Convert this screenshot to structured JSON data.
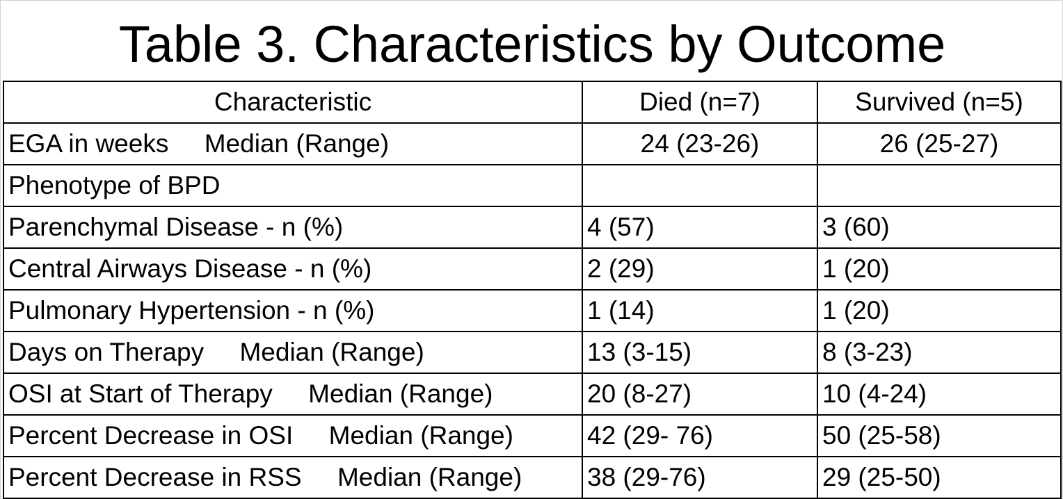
{
  "title": "Table 3. Characteristics by Outcome",
  "table": {
    "headers": [
      "Characteristic",
      "Died (n=7)",
      "Survived (n=5)"
    ],
    "rows": [
      {
        "characteristic": "EGA in weeks     Median (Range)",
        "died": "24 (23-26)",
        "survived": "26 (25-27)"
      },
      {
        "characteristic": "Phenotype of BPD",
        "died": "",
        "survived": ""
      },
      {
        "characteristic": "Parenchymal Disease - n (%)",
        "died": "4 (57)",
        "survived": "3 (60)"
      },
      {
        "characteristic": "Central Airways Disease - n (%)",
        "died": "2 (29)",
        "survived": "1 (20)"
      },
      {
        "characteristic": "Pulmonary Hypertension - n (%)",
        "died": "1 (14)",
        "survived": "1 (20)"
      },
      {
        "characteristic": "Days on Therapy     Median (Range)",
        "died": "13 (3-15)",
        "survived": "8 (3-23)"
      },
      {
        "characteristic": "OSI at Start of Therapy     Median (Range)",
        "died": "20 (8-27)",
        "survived": "10 (4-24)"
      },
      {
        "characteristic": "Percent Decrease in OSI     Median (Range)",
        "died": "42 (29- 76)",
        "survived": "50 (25-58)"
      },
      {
        "characteristic": "Percent Decrease in RSS     Median (Range)",
        "died": "38 (29-76)",
        "survived": "29 (25-50)"
      }
    ]
  }
}
